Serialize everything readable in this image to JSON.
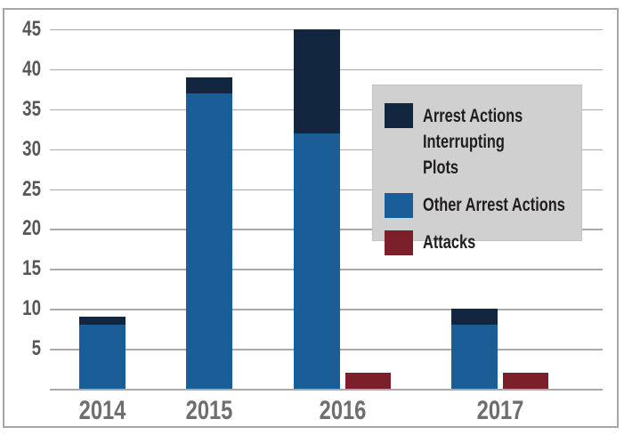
{
  "chart_data": {
    "type": "bar",
    "stacked": true,
    "title": "",
    "xlabel": "",
    "ylabel": "",
    "categories": [
      "2014",
      "2015",
      "2016",
      "2017"
    ],
    "series": [
      {
        "name": "Arrest Actions Interrupting Plots",
        "color": "#12273f",
        "values": [
          1,
          2,
          13,
          2
        ]
      },
      {
        "name": "Other Arrest Actions",
        "color": "#1b5e97",
        "values": [
          8,
          37,
          32,
          8
        ]
      },
      {
        "name": "Attacks",
        "color": "#7d1f2b",
        "values": [
          0,
          0,
          2,
          2
        ]
      }
    ],
    "stack_totals": [
      9,
      39,
      45,
      10
    ],
    "y_ticks": [
      5,
      10,
      15,
      20,
      25,
      30,
      35,
      40,
      45
    ],
    "ylim": [
      0,
      45
    ],
    "grid": true,
    "legend_position": "upper right"
  },
  "legend": {
    "items": [
      {
        "label": "Arrest Actions Interrupting Plots",
        "color": "#12273f"
      },
      {
        "label": "Other Arrest Actions",
        "color": "#1b5e97"
      },
      {
        "label": "Attacks",
        "color": "#7d1f2b"
      }
    ]
  },
  "colors": {
    "frame_border": "#a7a7a7",
    "gridline": "#a9a9a9",
    "legend_background": "#d0d0d0",
    "y_tick_text": "#57575a",
    "x_label_text": "#6e6e6e",
    "legend_text": "#211d1e"
  }
}
